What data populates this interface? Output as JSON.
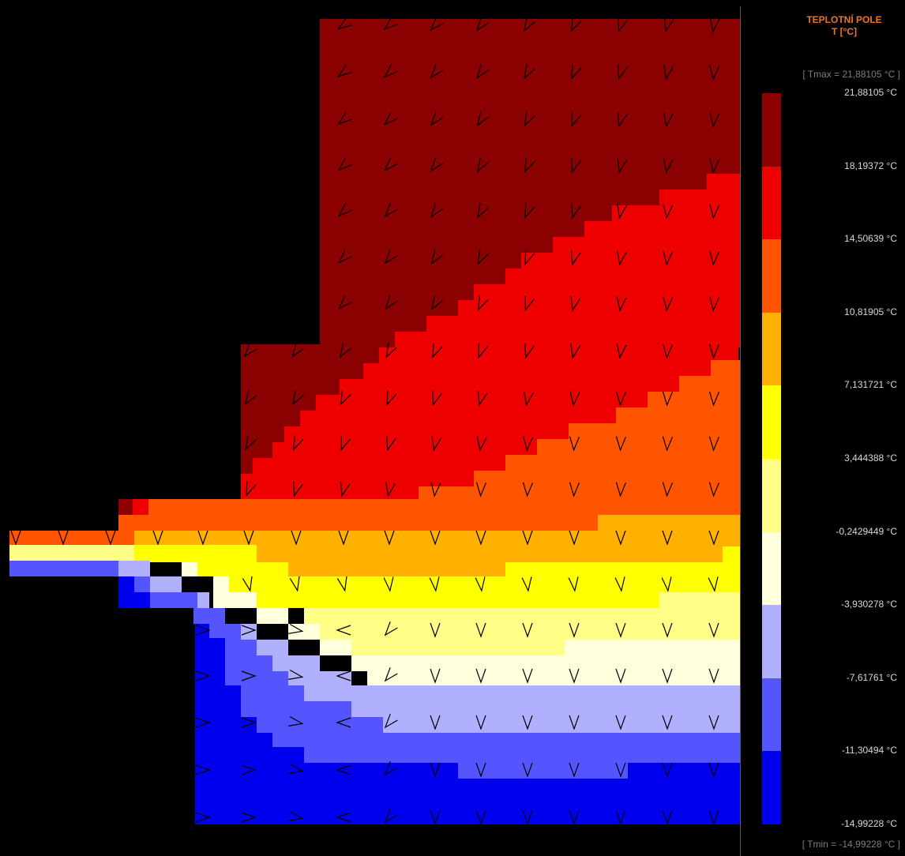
{
  "legend": {
    "title_line1": "TEPLOTNÍ POLE",
    "title_line2": "T [°C]",
    "tmax_label": "[ Tmax = 21,88105 °C ]",
    "tmin_label": "[ Tmin = -14,99228 °C ]",
    "ticks": [
      "21,88105 °C",
      "18,19372 °C",
      "14,50639 °C",
      "10,81905 °C",
      "7,131721 °C",
      "3,444388 °C",
      "-0,2429449 °C",
      "-3,930278 °C",
      "-7,61761 °C",
      "-11,30494 °C",
      "-14,99228 °C"
    ],
    "colors": [
      "#8b0000",
      "#ee0000",
      "#ff5500",
      "#ffb000",
      "#ffff00",
      "#ffff88",
      "#ffffdd",
      "#b0b0ff",
      "#5555ff",
      "#0000ee"
    ]
  }
}
